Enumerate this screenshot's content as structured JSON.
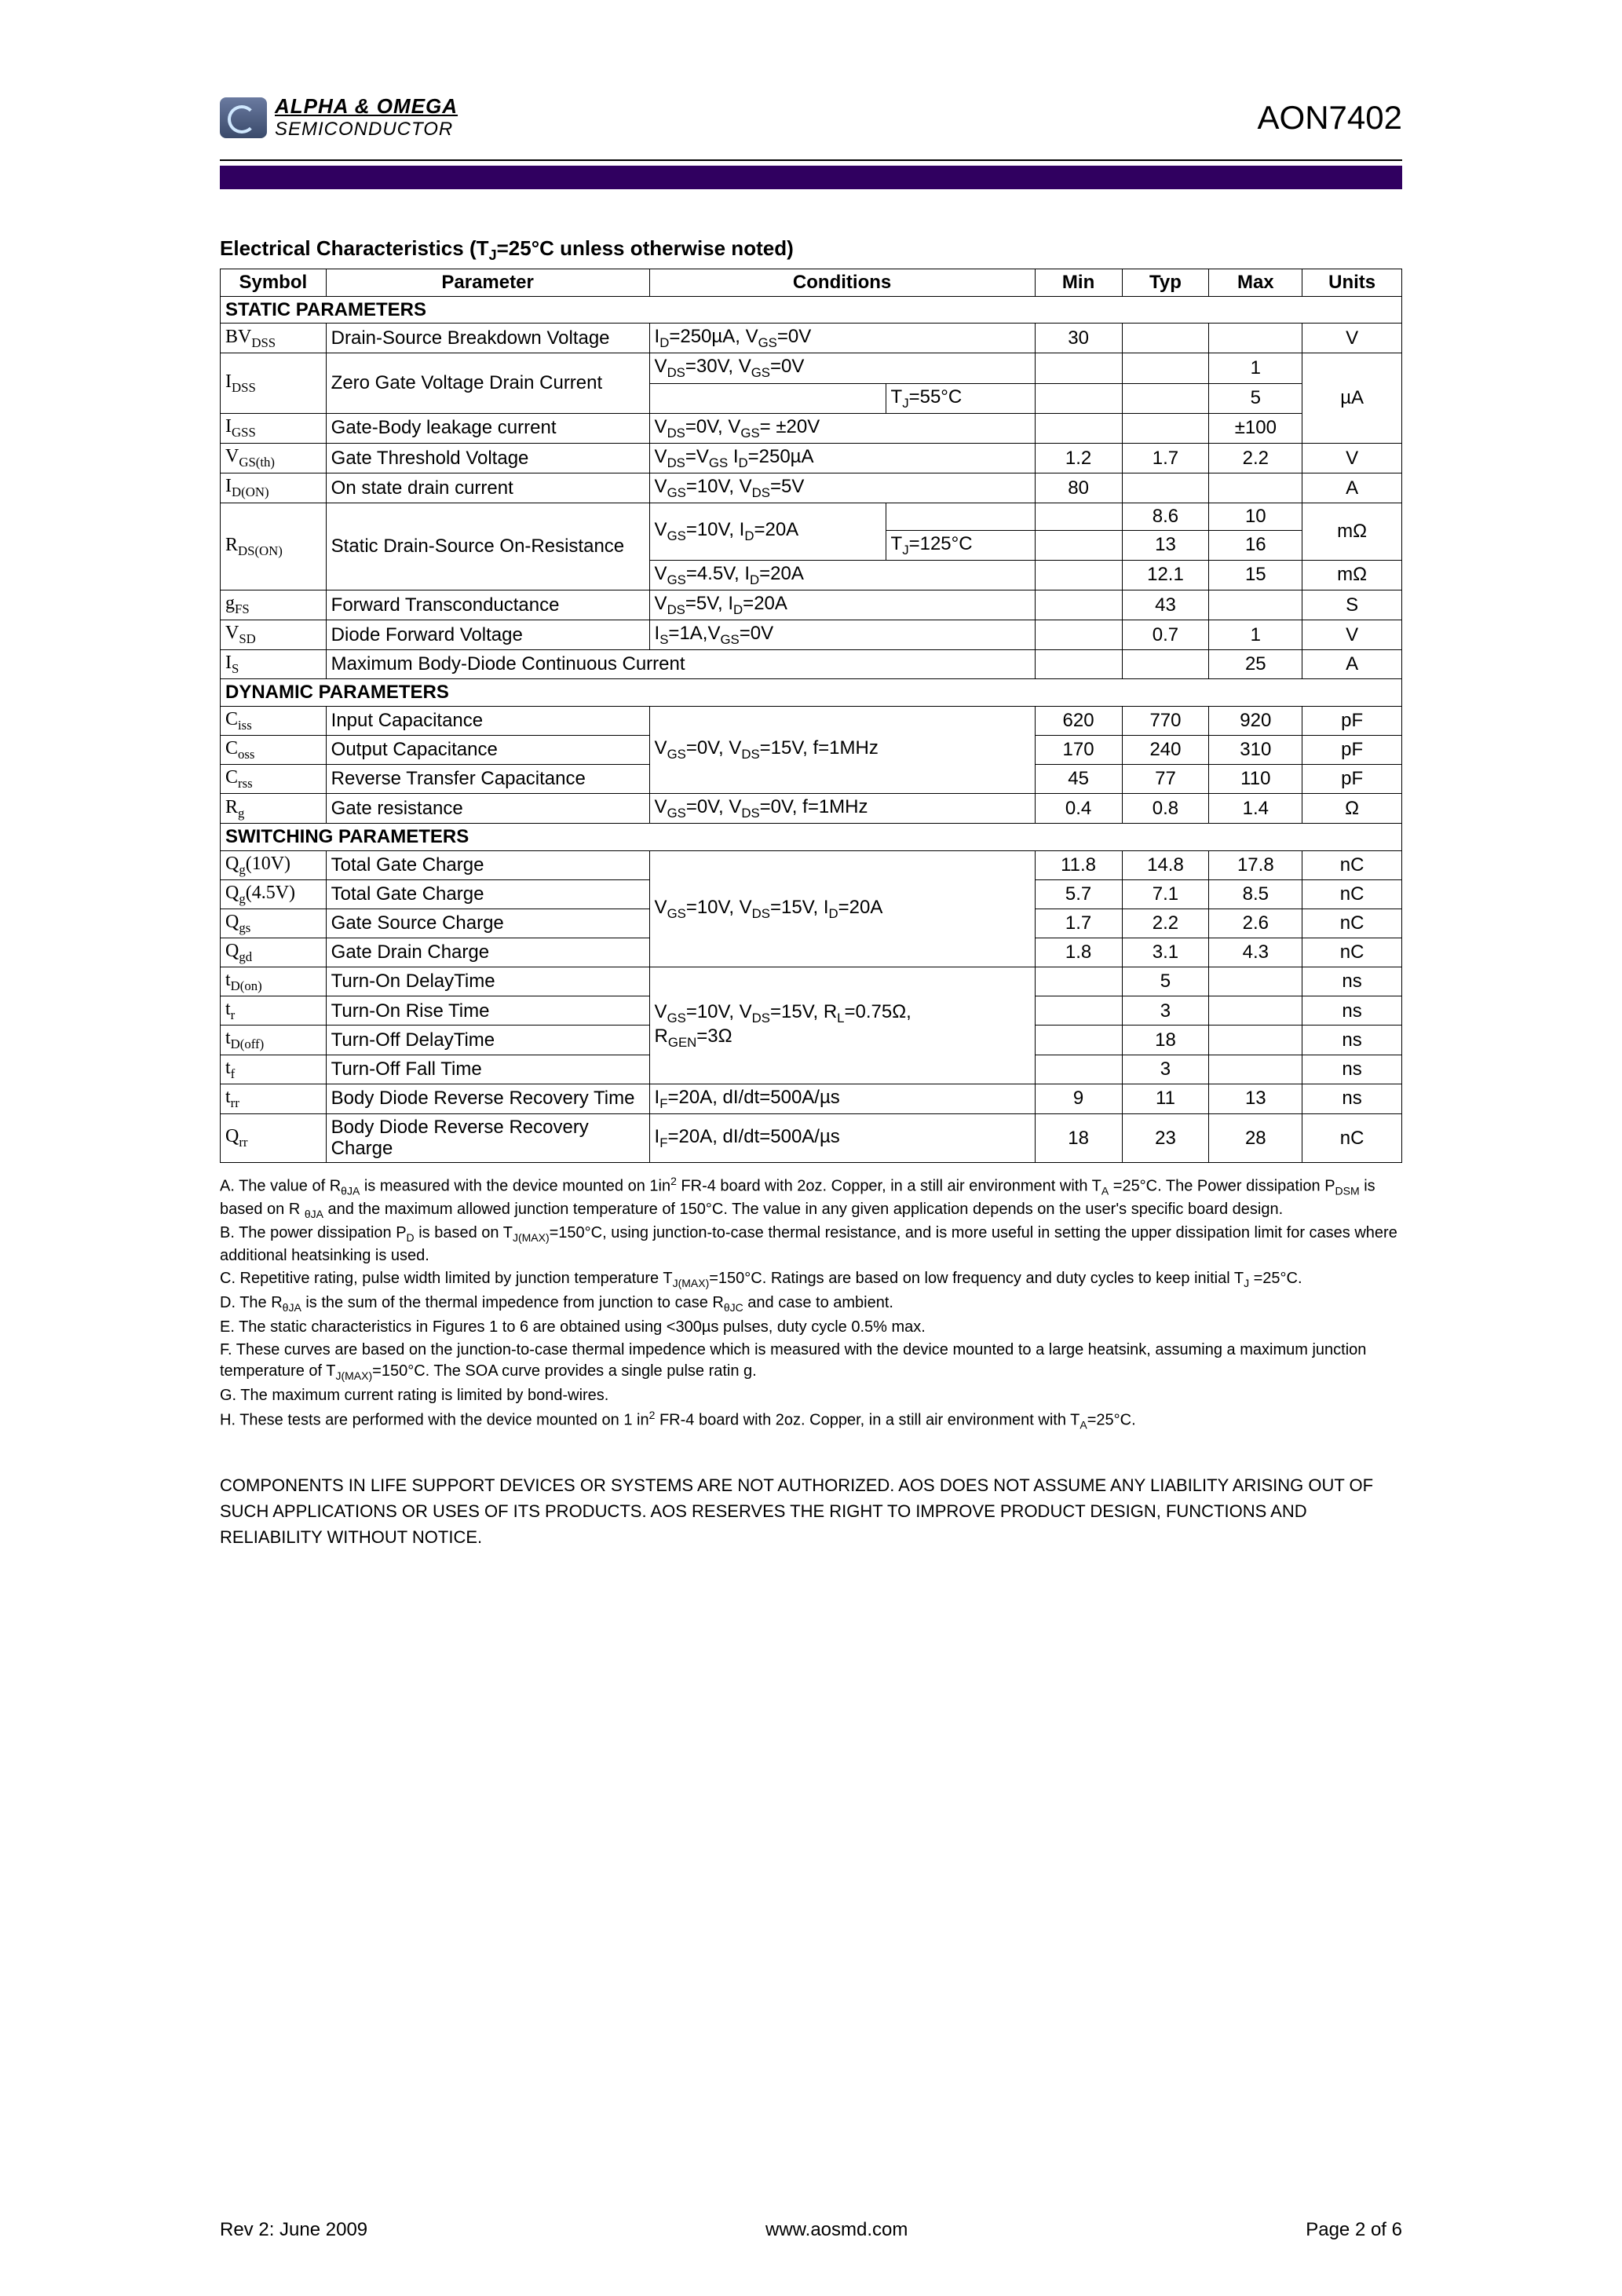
{
  "header": {
    "logo_line1": "ALPHA & OMEGA",
    "logo_line2": "SEMICONDUCTOR",
    "part_number": "AON7402"
  },
  "title_prefix": "Electrical Characteristics (T",
  "title_sub": "J",
  "title_suffix": "=25°C unless otherwise noted)",
  "columns": {
    "symbol": "Symbol",
    "parameter": "Parameter",
    "conditions": "Conditions",
    "min": "Min",
    "typ": "Typ",
    "max": "Max",
    "units": "Units"
  },
  "sections": {
    "static": "STATIC PARAMETERS",
    "dynamic": "DYNAMIC PARAMETERS",
    "switching": "SWITCHING PARAMETERS"
  },
  "rows": {
    "bvdss": {
      "sym": "BV<sub>DSS</sub>",
      "param": "Drain-Source Breakdown Voltage",
      "cond": "I<sub>D</sub>=250µA, V<sub>GS</sub>=0V",
      "min": "30",
      "typ": "",
      "max": "",
      "unit": "V"
    },
    "idss1": {
      "sym": "I<sub>DSS</sub>",
      "param": "Zero Gate Voltage Drain Current",
      "cond1": "V<sub>DS</sub>=30V, V<sub>GS</sub>=0V",
      "max1": "1",
      "cond2": "T<sub>J</sub>=55°C",
      "max2": "5",
      "unit": "µA"
    },
    "igss": {
      "sym": "I<sub>GSS</sub>",
      "param": "Gate-Body leakage current",
      "cond": "V<sub>DS</sub>=0V, V<sub>GS</sub>= ±20V",
      "min": "",
      "typ": "",
      "max": "±100"
    },
    "vgsth": {
      "sym": "V<sub>GS(th)</sub>",
      "param": "Gate Threshold Voltage",
      "cond": "V<sub>DS</sub>=V<sub>GS</sub> I<sub>D</sub>=250µA",
      "min": "1.2",
      "typ": "1.7",
      "max": "2.2",
      "unit": "V"
    },
    "idon": {
      "sym": "I<sub>D(ON)</sub>",
      "param": "On state drain current",
      "cond": "V<sub>GS</sub>=10V, V<sub>DS</sub>=5V",
      "min": "80",
      "typ": "",
      "max": "",
      "unit": "A"
    },
    "rdson": {
      "sym": "R<sub>DS(ON)</sub>",
      "param": "Static Drain-Source On-Resistance",
      "c1": "V<sub>GS</sub>=10V, I<sub>D</sub>=20A",
      "t1": "8.6",
      "m1": "10",
      "c1b": "T<sub>J</sub>=125°C",
      "t1b": "13",
      "m1b": "16",
      "u1": "mΩ",
      "c2": "V<sub>GS</sub>=4.5V, I<sub>D</sub>=20A",
      "t2": "12.1",
      "m2": "15",
      "u2": "mΩ"
    },
    "gfs": {
      "sym": "g<sub>FS</sub>",
      "param": "Forward Transconductance",
      "cond": "V<sub>DS</sub>=5V, I<sub>D</sub>=20A",
      "min": "",
      "typ": "43",
      "max": "",
      "unit": "S"
    },
    "vsd": {
      "sym": "V<sub>SD</sub>",
      "param": "Diode Forward Voltage",
      "cond": "I<sub>S</sub>=1A,V<sub>GS</sub>=0V",
      "min": "",
      "typ": "0.7",
      "max": "1",
      "unit": "V"
    },
    "is": {
      "sym": "I<sub>S</sub>",
      "param": "Maximum Body-Diode Continuous Current",
      "min": "",
      "typ": "",
      "max": "25",
      "unit": "A"
    },
    "ciss": {
      "sym": "C<sub>iss</sub>",
      "param": "Input Capacitance",
      "min": "620",
      "typ": "770",
      "max": "920",
      "unit": "pF"
    },
    "coss": {
      "sym": "C<sub>oss</sub>",
      "param": "Output Capacitance",
      "cond": "V<sub>GS</sub>=0V, V<sub>DS</sub>=15V, f=1MHz",
      "min": "170",
      "typ": "240",
      "max": "310",
      "unit": "pF"
    },
    "crss": {
      "sym": "C<sub>rss</sub>",
      "param": "Reverse Transfer Capacitance",
      "min": "45",
      "typ": "77",
      "max": "110",
      "unit": "pF"
    },
    "rg": {
      "sym": "R<sub>g</sub>",
      "param": "Gate resistance",
      "cond": "V<sub>GS</sub>=0V, V<sub>DS</sub>=0V, f=1MHz",
      "min": "0.4",
      "typ": "0.8",
      "max": "1.4",
      "unit": "Ω"
    },
    "qg10": {
      "sym": "Q<sub>g</sub>(10V)",
      "param": "Total Gate Charge",
      "min": "11.8",
      "typ": "14.8",
      "max": "17.8",
      "unit": "nC"
    },
    "qg45": {
      "sym": "Q<sub>g</sub>(4.5V)",
      "param": "Total Gate Charge",
      "cond": "V<sub>GS</sub>=10V, V<sub>DS</sub>=15V, I<sub>D</sub>=20A",
      "min": "5.7",
      "typ": "7.1",
      "max": "8.5",
      "unit": "nC"
    },
    "qgs": {
      "sym": "Q<sub>gs</sub>",
      "param": "Gate Source Charge",
      "min": "1.7",
      "typ": "2.2",
      "max": "2.6",
      "unit": "nC"
    },
    "qgd": {
      "sym": "Q<sub>gd</sub>",
      "param": "Gate Drain Charge",
      "min": "1.8",
      "typ": "3.1",
      "max": "4.3",
      "unit": "nC"
    },
    "tdon": {
      "sym": "t<sub>D(on)</sub>",
      "param": "Turn-On DelayTime",
      "typ": "5",
      "unit": "ns"
    },
    "tr": {
      "sym": "t<sub>r</sub>",
      "param": "Turn-On Rise Time",
      "cond": "V<sub>GS</sub>=10V, V<sub>DS</sub>=15V, R<sub>L</sub>=0.75Ω,<br>R<sub>GEN</sub>=3Ω",
      "typ": "3",
      "unit": "ns"
    },
    "tdoff": {
      "sym": "t<sub>D(off)</sub>",
      "param": "Turn-Off DelayTime",
      "typ": "18",
      "unit": "ns"
    },
    "tf": {
      "sym": "t<sub>f</sub>",
      "param": "Turn-Off Fall Time",
      "typ": "3",
      "unit": "ns"
    },
    "trr": {
      "sym": "t<sub>rr</sub>",
      "param": "Body Diode Reverse Recovery Time",
      "cond": "I<sub>F</sub>=20A, dI/dt=500A/µs",
      "min": "9",
      "typ": "11",
      "max": "13",
      "unit": "ns"
    },
    "qrr": {
      "sym": "Q<sub>rr</sub>",
      "param": "Body Diode Reverse Recovery Charge",
      "cond": "I<sub>F</sub>=20A, dI/dt=500A/µs",
      "min": "18",
      "typ": "23",
      "max": "28",
      "unit": "nC"
    }
  },
  "notes": {
    "a": "A. The value of R<sub>θJA</sub> is measured with the device mounted on 1in<sup>2</sup> FR-4 board with 2oz. Copper, in a still air environment with T<sub>A</sub> =25°C. The Power dissipation P<sub>DSM</sub> is based on R <sub>θJA</sub> and the maximum allowed junction temperature of 150°C. The value in any given application depends on the user's specific board design.",
    "b": "B. The power dissipation P<sub>D</sub> is based on T<sub>J(MAX)</sub>=150°C, using junction-to-case thermal resistance, and is more useful in setting the upper dissipation limit for cases where additional heatsinking is used.",
    "c": "C. Repetitive rating, pulse width limited by junction temperature T<sub>J(MAX)</sub>=150°C. Ratings are based on low frequency and duty cycles to keep initial T<sub>J</sub> =25°C.",
    "d": "D. The R<sub>θJA</sub> is the sum of the thermal impedence from junction to case R<sub>θJC</sub> and case to ambient.",
    "e": "E. The static characteristics in Figures 1 to 6 are obtained using &lt;300µs pulses, duty cycle 0.5% max.",
    "f": "F. These curves are based on the junction-to-case thermal impedence which is measured with the device mounted to a large heatsink, assuming a maximum junction temperature of T<sub>J(MAX)</sub>=150°C. The SOA curve provides a single pulse ratin g.",
    "g": "G. The maximum current rating is limited by bond-wires.",
    "h": "H. These tests are performed with the device mounted on 1 in<sup>2</sup> FR-4 board with 2oz. Copper, in a still air environment with T<sub>A</sub>=25°C."
  },
  "disclaimer": "COMPONENTS IN LIFE SUPPORT DEVICES OR SYSTEMS ARE NOT AUTHORIZED. AOS DOES NOT ASSUME ANY LIABILITY ARISING OUT OF SUCH APPLICATIONS OR USES OF ITS PRODUCTS.  AOS RESERVES THE RIGHT TO IMPROVE PRODUCT DESIGN, FUNCTIONS AND RELIABILITY WITHOUT NOTICE.",
  "footer": {
    "left": "Rev 2: June 2009",
    "center": "www.aosmd.com",
    "right": "Page 2 of 6"
  },
  "colors": {
    "purple_bar": "#300060",
    "rule": "#000000",
    "text": "#000000",
    "bg": "#ffffff"
  }
}
